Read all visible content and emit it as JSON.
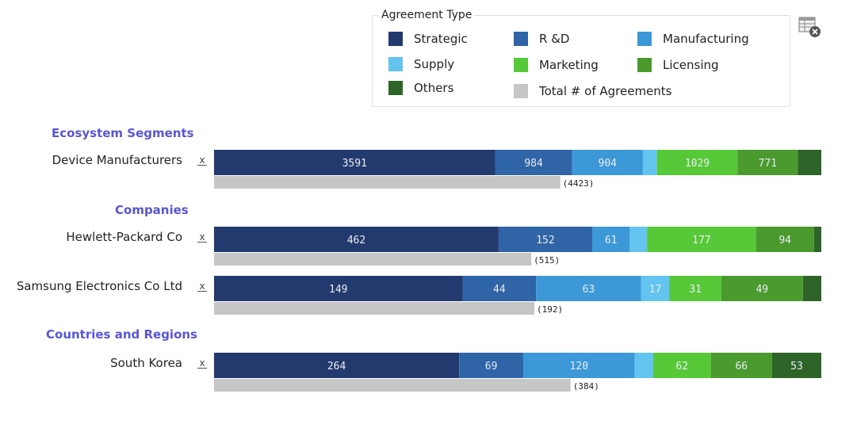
{
  "legend": {
    "title": "Agreement Type",
    "items": [
      {
        "label": "Strategic",
        "color": "#233a6e"
      },
      {
        "label": "R &D",
        "color": "#2f64a6"
      },
      {
        "label": "Manufacturing",
        "color": "#3c98d6"
      },
      {
        "label": "Supply",
        "color": "#62c4ef"
      },
      {
        "label": "Marketing",
        "color": "#57c837"
      },
      {
        "label": "Licensing",
        "color": "#4a9a2e"
      },
      {
        "label": "Others",
        "color": "#2e6428"
      },
      {
        "label": "Total # of Agreements",
        "color": "#c6c6c6"
      }
    ]
  },
  "toolbar": {
    "icon": "table-close-icon"
  },
  "remove_glyph": "x",
  "chart_data": {
    "type": "bar",
    "orientation": "horizontal",
    "stacked": true,
    "series_names": [
      "Strategic",
      "R &D",
      "Manufacturing",
      "Supply",
      "Marketing",
      "Licensing",
      "Others"
    ],
    "groups": [
      {
        "heading": "Ecosystem Segments",
        "rows": [
          {
            "label": "Device Manufacturers",
            "values": [
              3591,
              984,
              904,
              180,
              1029,
              771,
              300
            ],
            "value_labels": [
              "3591",
              "984",
              "904",
              "",
              "1029",
              "771",
              ""
            ],
            "total": 4423,
            "total_label": "(4423)"
          }
        ]
      },
      {
        "heading": "Companies",
        "rows": [
          {
            "label": "Hewlett-Packard Co",
            "values": [
              462,
              152,
              61,
              28,
              177,
              94,
              12
            ],
            "value_labels": [
              "462",
              "152",
              "61",
              "",
              "177",
              "94",
              ""
            ],
            "total": 515,
            "total_label": "(515)"
          },
          {
            "label": "Samsung Electronics Co Ltd",
            "values": [
              149,
              44,
              63,
              17,
              31,
              49,
              11
            ],
            "value_labels": [
              "149",
              "44",
              "63",
              "17",
              "31",
              "49",
              ""
            ],
            "total": 192,
            "total_label": "(192)"
          }
        ]
      },
      {
        "heading": "Countries and Regions",
        "rows": [
          {
            "label": "South Korea",
            "values": [
              264,
              69,
              120,
              20,
              62,
              66,
              53
            ],
            "value_labels": [
              "264",
              "69",
              "120",
              "",
              "62",
              "66",
              "53"
            ],
            "total": 384,
            "total_label": "(384)"
          }
        ]
      }
    ]
  }
}
